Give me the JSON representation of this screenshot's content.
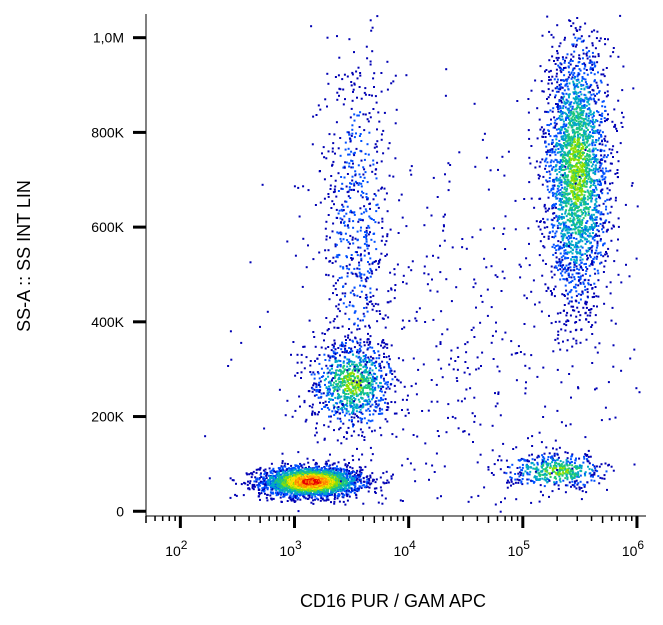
{
  "chart_data": {
    "type": "scatter",
    "subtype": "flow-cytometry-density-dot-plot",
    "title": "",
    "xlabel": "CD16 PUR / GAM APC",
    "ylabel": "SS-A :: SS INT LIN",
    "x_scale": "log",
    "xlim": [
      50,
      1200000
    ],
    "ylim": [
      -10000,
      1050000
    ],
    "grid": false,
    "x_ticks": [
      {
        "value": 100,
        "base": "10",
        "exp": "2"
      },
      {
        "value": 1000,
        "base": "10",
        "exp": "3"
      },
      {
        "value": 10000,
        "base": "10",
        "exp": "4"
      },
      {
        "value": 100000,
        "base": "10",
        "exp": "5"
      },
      {
        "value": 1000000,
        "base": "10",
        "exp": "6"
      }
    ],
    "y_ticks": [
      {
        "value": 0,
        "label": "0"
      },
      {
        "value": 200000,
        "label": "200K"
      },
      {
        "value": 400000,
        "label": "400K"
      },
      {
        "value": 600000,
        "label": "600K"
      },
      {
        "value": 800000,
        "label": "800K"
      },
      {
        "value": 1000000,
        "label": "1,0M"
      }
    ],
    "density_colors": [
      "#0000b4",
      "#0050ff",
      "#00a8c8",
      "#20c878",
      "#90e000",
      "#ffe000",
      "#ff8000",
      "#e80000"
    ],
    "populations": [
      {
        "name": "lymphocytes",
        "x_center": 1400,
        "x_spread_log10": 0.22,
        "y_center": 62000,
        "y_spread": 16000,
        "count": 2600,
        "peak_color_index": 7
      },
      {
        "name": "monocytes",
        "x_center": 3200,
        "x_spread_log10": 0.18,
        "y_center": 270000,
        "y_spread": 45000,
        "count": 900,
        "peak_color_index": 4
      },
      {
        "name": "monocytes-upper-tail",
        "x_center": 3500,
        "x_spread_log10": 0.16,
        "y_center": 620000,
        "y_spread": 200000,
        "count": 650,
        "peak_color_index": 1
      },
      {
        "name": "granulocytes",
        "x_center": 300000,
        "x_spread_log10": 0.14,
        "y_center": 720000,
        "y_spread": 140000,
        "count": 2600,
        "peak_color_index": 4
      },
      {
        "name": "debris-low-ss",
        "x_center": 200000,
        "x_spread_log10": 0.22,
        "y_center": 85000,
        "y_spread": 18000,
        "count": 450,
        "peak_color_index": 4
      },
      {
        "name": "scatter-background",
        "x_center": 30000,
        "x_spread_log10": 0.8,
        "y_center": 300000,
        "y_spread": 250000,
        "count": 500,
        "peak_color_index": 0
      }
    ]
  }
}
